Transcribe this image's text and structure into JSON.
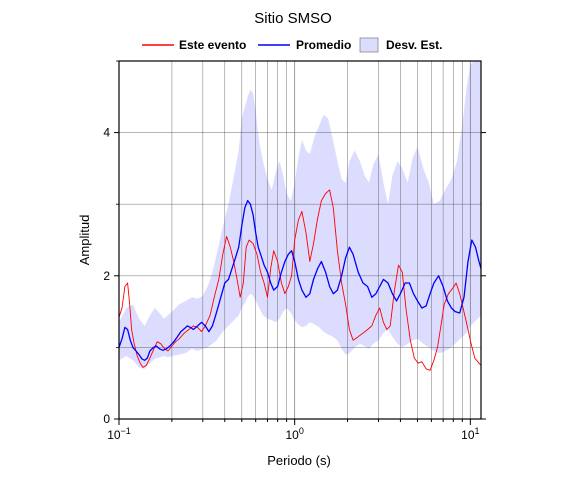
{
  "chart_data": {
    "type": "line",
    "title": "Sitio SMSO",
    "xlabel": "Periodo (s)",
    "ylabel": "Amplitud",
    "x_scale": "log",
    "xlim": [
      0.1,
      11.5
    ],
    "ylim": [
      0,
      5
    ],
    "grid": true,
    "legend_placement": "top-center",
    "x_ticks": [
      {
        "value": 0.1,
        "base": "10",
        "exp": "−1"
      },
      {
        "value": 1,
        "label": "10",
        "exp": "0"
      },
      {
        "value": 10,
        "label": "10",
        "exp": "1"
      }
    ],
    "y_ticks": [
      0,
      2,
      4
    ],
    "legend": [
      {
        "label": "Este evento",
        "kind": "line",
        "color": "#ff0000"
      },
      {
        "label": "Promedio",
        "kind": "line",
        "color": "#0000ff"
      },
      {
        "label": "Desv. Est.",
        "kind": "band",
        "color": "#dcdcff"
      }
    ],
    "series": [
      {
        "name": "Este evento",
        "color": "#ff0000",
        "x": [
          0.1,
          0.104,
          0.108,
          0.112,
          0.115,
          0.118,
          0.122,
          0.127,
          0.132,
          0.137,
          0.143,
          0.15,
          0.158,
          0.165,
          0.173,
          0.182,
          0.19,
          0.2,
          0.21,
          0.22,
          0.235,
          0.25,
          0.265,
          0.28,
          0.295,
          0.31,
          0.33,
          0.35,
          0.37,
          0.39,
          0.41,
          0.43,
          0.45,
          0.47,
          0.49,
          0.51,
          0.53,
          0.55,
          0.58,
          0.61,
          0.64,
          0.67,
          0.7,
          0.73,
          0.76,
          0.8,
          0.84,
          0.88,
          0.92,
          0.96,
          1.0,
          1.05,
          1.1,
          1.16,
          1.22,
          1.28,
          1.35,
          1.42,
          1.5,
          1.58,
          1.66,
          1.75,
          1.85,
          1.95,
          2.05,
          2.15,
          2.3,
          2.45,
          2.6,
          2.75,
          2.9,
          3.05,
          3.2,
          3.35,
          3.5,
          3.7,
          3.9,
          4.1,
          4.3,
          4.55,
          4.8,
          5.05,
          5.3,
          5.6,
          5.9,
          6.2,
          6.5,
          6.8,
          7.1,
          7.5,
          7.9,
          8.3,
          8.7,
          9.1,
          9.6,
          10.1,
          10.6,
          11.2,
          11.5
        ],
        "values": [
          1.42,
          1.55,
          1.85,
          1.9,
          1.6,
          1.25,
          1.05,
          0.88,
          0.78,
          0.72,
          0.75,
          0.85,
          0.98,
          1.08,
          1.05,
          0.98,
          0.95,
          1.02,
          1.08,
          1.12,
          1.2,
          1.25,
          1.3,
          1.28,
          1.22,
          1.3,
          1.45,
          1.72,
          1.95,
          2.3,
          2.55,
          2.4,
          2.2,
          1.95,
          1.7,
          1.9,
          2.4,
          2.5,
          2.45,
          2.3,
          2.05,
          1.9,
          1.7,
          2.1,
          2.35,
          2.2,
          1.9,
          1.75,
          1.85,
          2.0,
          2.5,
          2.78,
          2.9,
          2.6,
          2.2,
          2.45,
          2.8,
          3.05,
          3.15,
          3.2,
          2.95,
          2.35,
          1.9,
          1.6,
          1.25,
          1.1,
          1.15,
          1.2,
          1.25,
          1.3,
          1.45,
          1.55,
          1.35,
          1.25,
          1.3,
          1.8,
          2.15,
          2.05,
          1.55,
          1.1,
          0.85,
          0.78,
          0.8,
          0.7,
          0.68,
          0.82,
          1.0,
          1.3,
          1.6,
          1.75,
          1.82,
          1.9,
          1.75,
          1.55,
          1.3,
          1.05,
          0.85,
          0.78,
          0.75
        ]
      },
      {
        "name": "Promedio",
        "color": "#0000ff",
        "x": [
          0.1,
          0.104,
          0.108,
          0.112,
          0.116,
          0.12,
          0.125,
          0.13,
          0.135,
          0.14,
          0.145,
          0.15,
          0.157,
          0.163,
          0.17,
          0.178,
          0.186,
          0.195,
          0.205,
          0.215,
          0.225,
          0.235,
          0.245,
          0.255,
          0.265,
          0.28,
          0.295,
          0.31,
          0.325,
          0.34,
          0.355,
          0.37,
          0.385,
          0.4,
          0.42,
          0.44,
          0.46,
          0.48,
          0.5,
          0.52,
          0.54,
          0.56,
          0.58,
          0.6,
          0.62,
          0.64,
          0.67,
          0.7,
          0.73,
          0.76,
          0.8,
          0.84,
          0.88,
          0.92,
          0.96,
          1.0,
          1.05,
          1.1,
          1.16,
          1.22,
          1.28,
          1.35,
          1.42,
          1.5,
          1.58,
          1.66,
          1.75,
          1.85,
          1.95,
          2.05,
          2.15,
          2.3,
          2.45,
          2.6,
          2.75,
          2.9,
          3.05,
          3.2,
          3.4,
          3.6,
          3.8,
          4.0,
          4.25,
          4.5,
          4.75,
          5.0,
          5.3,
          5.6,
          5.9,
          6.2,
          6.6,
          7.0,
          7.4,
          7.8,
          8.2,
          8.7,
          9.2,
          9.7,
          10.2,
          10.7,
          11.2,
          11.5
        ],
        "values": [
          1.0,
          1.12,
          1.28,
          1.25,
          1.1,
          1.0,
          0.95,
          0.9,
          0.84,
          0.82,
          0.85,
          0.95,
          1.0,
          1.02,
          0.98,
          0.96,
          0.98,
          1.02,
          1.08,
          1.15,
          1.22,
          1.26,
          1.3,
          1.28,
          1.25,
          1.3,
          1.35,
          1.3,
          1.22,
          1.3,
          1.45,
          1.6,
          1.75,
          1.9,
          1.95,
          2.1,
          2.25,
          2.4,
          2.7,
          2.95,
          3.05,
          3.0,
          2.85,
          2.6,
          2.4,
          2.3,
          2.15,
          2.05,
          1.9,
          1.8,
          1.85,
          2.05,
          2.2,
          2.3,
          2.35,
          2.2,
          1.95,
          1.8,
          1.7,
          1.75,
          1.95,
          2.1,
          2.2,
          2.05,
          1.85,
          1.75,
          1.8,
          2.0,
          2.25,
          2.4,
          2.3,
          2.05,
          1.9,
          1.85,
          1.7,
          1.75,
          1.85,
          1.95,
          1.9,
          1.75,
          1.65,
          1.75,
          1.9,
          1.9,
          1.75,
          1.65,
          1.55,
          1.58,
          1.75,
          1.9,
          2.0,
          1.85,
          1.65,
          1.55,
          1.5,
          1.48,
          1.7,
          2.2,
          2.5,
          2.4,
          2.2,
          2.1
        ]
      }
    ],
    "band": {
      "name": "Desv. Est.",
      "color": "#dcdcff",
      "x": [
        0.1,
        0.11,
        0.12,
        0.13,
        0.14,
        0.15,
        0.16,
        0.17,
        0.18,
        0.19,
        0.2,
        0.22,
        0.24,
        0.26,
        0.28,
        0.3,
        0.32,
        0.34,
        0.36,
        0.38,
        0.4,
        0.42,
        0.44,
        0.46,
        0.48,
        0.5,
        0.52,
        0.54,
        0.56,
        0.58,
        0.6,
        0.63,
        0.66,
        0.7,
        0.74,
        0.78,
        0.82,
        0.86,
        0.9,
        0.95,
        1.0,
        1.05,
        1.1,
        1.16,
        1.22,
        1.3,
        1.38,
        1.46,
        1.55,
        1.65,
        1.75,
        1.85,
        1.95,
        2.05,
        2.2,
        2.35,
        2.5,
        2.65,
        2.8,
        3.0,
        3.2,
        3.4,
        3.6,
        3.85,
        4.1,
        4.4,
        4.7,
        5.0,
        5.4,
        5.8,
        6.2,
        6.7,
        7.2,
        7.8,
        8.4,
        9.0,
        9.5,
        10.0,
        10.5,
        11.0,
        11.5
      ],
      "upper": [
        1.35,
        1.55,
        1.6,
        1.4,
        1.3,
        1.45,
        1.55,
        1.48,
        1.4,
        1.45,
        1.5,
        1.6,
        1.65,
        1.7,
        1.68,
        1.72,
        1.85,
        2.05,
        2.3,
        2.55,
        2.8,
        3.0,
        3.25,
        3.5,
        3.75,
        4.2,
        4.35,
        4.5,
        4.6,
        4.55,
        4.3,
        3.85,
        3.6,
        3.35,
        3.2,
        3.45,
        3.6,
        3.4,
        3.15,
        3.05,
        3.3,
        3.65,
        3.9,
        3.75,
        3.7,
        3.95,
        4.1,
        4.25,
        4.2,
        3.9,
        3.6,
        3.35,
        3.3,
        3.6,
        3.75,
        3.6,
        3.4,
        3.3,
        3.55,
        3.7,
        3.3,
        3.0,
        3.4,
        3.6,
        3.5,
        3.3,
        3.65,
        3.8,
        3.5,
        3.3,
        3.0,
        3.05,
        3.2,
        3.35,
        3.6,
        4.1,
        4.6,
        4.95,
        5.0,
        5.0,
        5.0
      ],
      "lower": [
        0.82,
        0.88,
        0.82,
        0.72,
        0.7,
        0.78,
        0.84,
        0.86,
        0.88,
        0.86,
        0.88,
        0.9,
        0.92,
        0.98,
        0.95,
        0.98,
        1.0,
        1.05,
        1.1,
        1.18,
        1.25,
        1.3,
        1.35,
        1.4,
        1.45,
        1.55,
        1.62,
        1.7,
        1.75,
        1.72,
        1.65,
        1.55,
        1.45,
        1.4,
        1.38,
        1.35,
        1.4,
        1.5,
        1.55,
        1.48,
        1.38,
        1.32,
        1.28,
        1.3,
        1.35,
        1.32,
        1.28,
        1.22,
        1.18,
        1.15,
        1.1,
        0.98,
        0.9,
        0.92,
        1.0,
        1.05,
        1.02,
        0.98,
        1.05,
        1.1,
        1.2,
        1.25,
        1.15,
        1.05,
        1.0,
        1.05,
        1.1,
        1.12,
        1.05,
        1.0,
        0.95,
        0.92,
        0.95,
        1.0,
        1.08,
        1.15,
        1.2,
        1.3,
        1.35,
        1.4,
        1.45
      ]
    }
  }
}
